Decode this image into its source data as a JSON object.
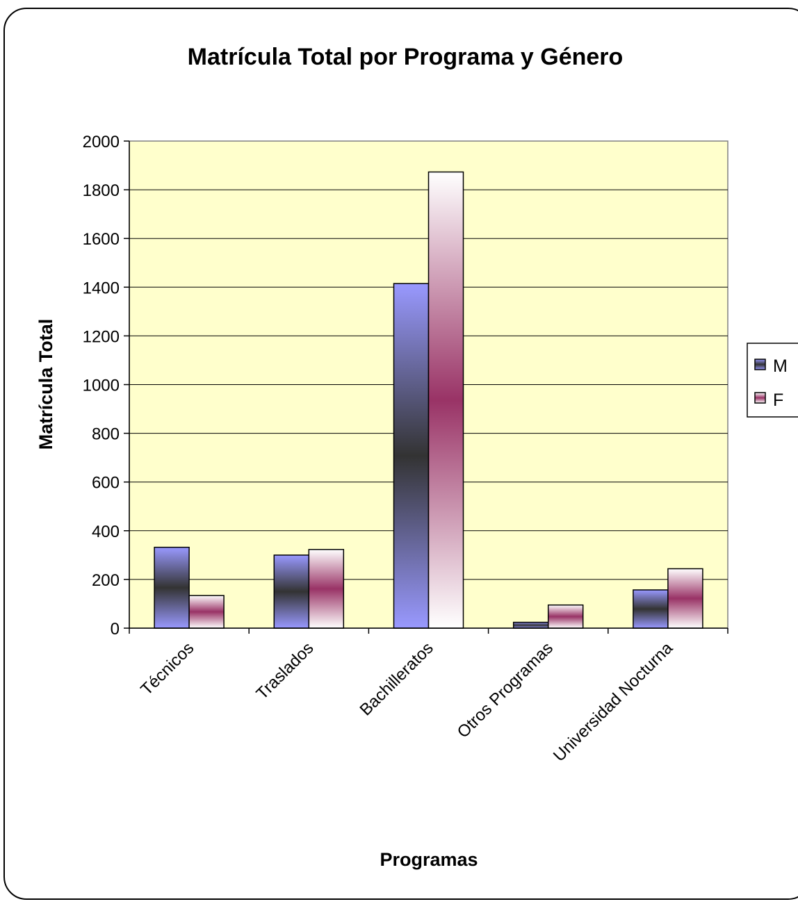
{
  "chart_data": {
    "type": "bar",
    "title": "Matrícula Total por Programa y Género",
    "xlabel": "Programas",
    "ylabel": "Matrícula Total",
    "categories": [
      "Técnicos",
      "Traslados",
      "Bachilleratos",
      "Otros Programas",
      "Universidad Nocturna"
    ],
    "series": [
      {
        "name": "M",
        "values": [
          332,
          300,
          1415,
          24,
          157
        ]
      },
      {
        "name": "F",
        "values": [
          134,
          323,
          1873,
          95,
          244
        ]
      }
    ],
    "ylim": [
      0,
      2000
    ],
    "yticks": [
      0,
      200,
      400,
      600,
      800,
      1000,
      1200,
      1400,
      1600,
      1800,
      2000
    ],
    "grid": true,
    "legend_position": "right",
    "colors": {
      "plot_background": "#ffffcc",
      "M_light": "#9999ff",
      "M_dark": "#333333",
      "F_light": "#ffffff",
      "F_dark": "#993366"
    }
  }
}
